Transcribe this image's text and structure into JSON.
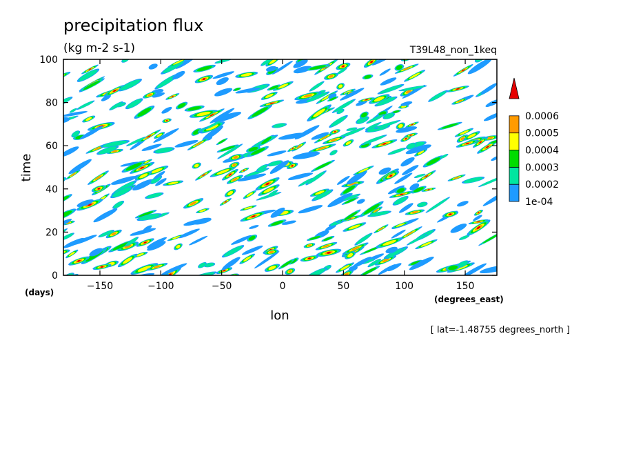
{
  "chart_data": {
    "type": "heatmap",
    "title": "precipitation flux",
    "subtitle": "(kg m-2 s-1)",
    "run_label": "T39L48_non_1keq",
    "xlabel": "lon",
    "ylabel": "time",
    "x_unit": "(degrees_east)",
    "y_unit": "(days)",
    "footnote": "[ lat=-1.48755 degrees_north ]",
    "xlim": [
      -180,
      176
    ],
    "ylim": [
      0,
      100
    ],
    "x_ticks": [
      -150,
      -100,
      -50,
      0,
      50,
      100,
      150
    ],
    "x_tick_labels": [
      "−150",
      "−100",
      "−50",
      "0",
      "50",
      "100",
      "150"
    ],
    "y_ticks": [
      0,
      20,
      40,
      60,
      80,
      100
    ],
    "y_tick_labels": [
      "0",
      "20",
      "40",
      "60",
      "80",
      "100"
    ],
    "colorbar": {
      "levels": [
        "1e-04",
        "0.0002",
        "0.0003",
        "0.0004",
        "0.0005",
        "0.0006"
      ],
      "level_values": [
        0.0001,
        0.0002,
        0.0003,
        0.0004,
        0.0005,
        0.0006
      ],
      "colors": [
        "#1e9bff",
        "#00e6a0",
        "#00dc00",
        "#ffff00",
        "#ff9b00",
        "#e60000"
      ],
      "extend": "max"
    },
    "pattern": "eastward-propagating precipitation streaks over all longitudes and days 0-100",
    "grid": false
  }
}
